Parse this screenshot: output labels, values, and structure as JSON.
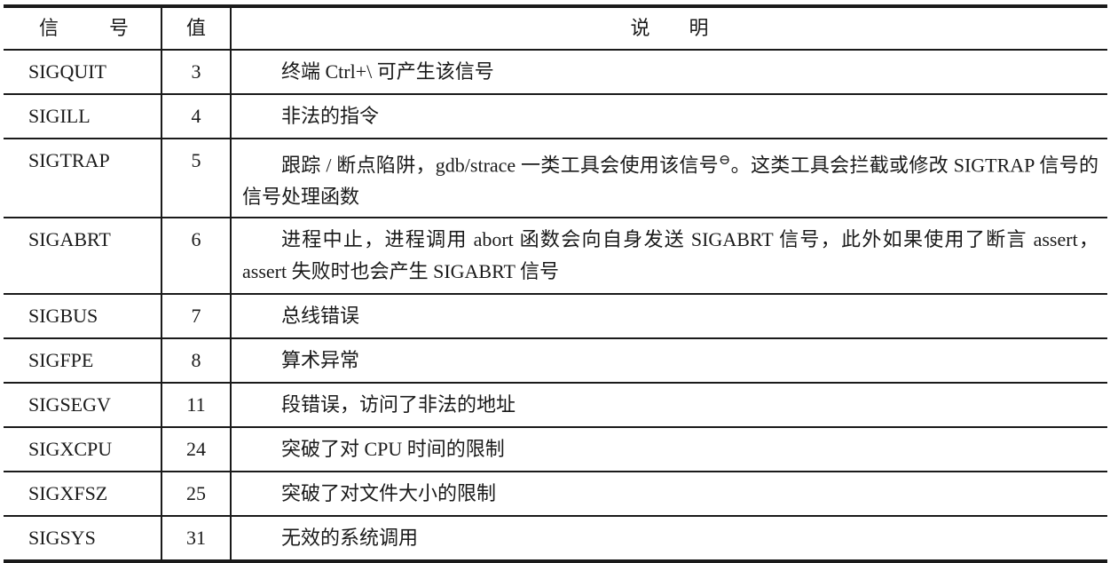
{
  "header": {
    "signal": [
      "信",
      "号"
    ],
    "value": "值",
    "description": [
      "说",
      "明"
    ]
  },
  "rows": [
    {
      "signal": "SIGQUIT",
      "value": "3",
      "description": "终端 Ctrl+\\ 可产生该信号"
    },
    {
      "signal": "SIGILL",
      "value": "4",
      "description": "非法的指令"
    },
    {
      "signal": "SIGTRAP",
      "value": "5",
      "description": "跟踪 / 断点陷阱，gdb/strace 一类工具会使用该信号",
      "footnote_mark": "⊖",
      "description_cont": "。这类工具会拦截或修改 SIGTRAP 信号的信号处理函数"
    },
    {
      "signal": "SIGABRT",
      "value": "6",
      "description": "进程中止，进程调用 abort 函数会向自身发送 SIGABRT 信号，此外如果使用了断言 assert，assert 失败时也会产生 SIGABRT 信号"
    },
    {
      "signal": "SIGBUS",
      "value": "7",
      "description": "总线错误"
    },
    {
      "signal": "SIGFPE",
      "value": "8",
      "description": "算术异常"
    },
    {
      "signal": "SIGSEGV",
      "value": "11",
      "description": "段错误，访问了非法的地址"
    },
    {
      "signal": "SIGXCPU",
      "value": "24",
      "description": "突破了对 CPU 时间的限制"
    },
    {
      "signal": "SIGXFSZ",
      "value": "25",
      "description": "突破了对文件大小的限制"
    },
    {
      "signal": "SIGSYS",
      "value": "31",
      "description": "无效的系统调用"
    }
  ]
}
